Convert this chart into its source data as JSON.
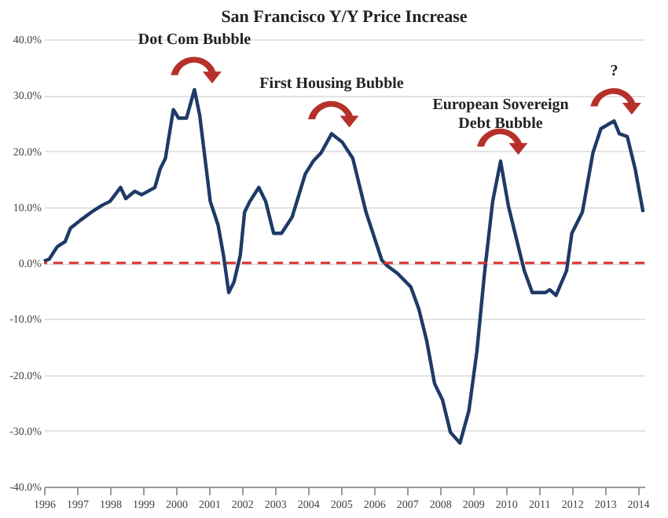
{
  "chart_data": {
    "type": "line",
    "title": "San Francisco Y/Y Price Increase",
    "x": [
      1996.0,
      1996.16,
      1996.4,
      1996.64,
      1996.8,
      1997.12,
      1997.44,
      1997.76,
      1998.0,
      1998.32,
      1998.48,
      1998.75,
      1998.96,
      1999.36,
      1999.52,
      1999.68,
      1999.92,
      2000.08,
      2000.32,
      2000.56,
      2000.72,
      2000.88,
      2001.04,
      2001.28,
      2001.44,
      2001.6,
      2001.76,
      2001.95,
      2002.08,
      2002.24,
      2002.51,
      2002.72,
      2002.96,
      2003.2,
      2003.52,
      2003.92,
      2004.16,
      2004.4,
      2004.72,
      2005.04,
      2005.36,
      2005.76,
      2006.24,
      2006.4,
      2006.72,
      2007.12,
      2007.36,
      2007.6,
      2007.84,
      2008.08,
      2008.32,
      2008.61,
      2008.88,
      2009.12,
      2009.36,
      2009.6,
      2009.84,
      2010.08,
      2010.4,
      2010.56,
      2010.8,
      2011.2,
      2011.33,
      2011.52,
      2011.84,
      2012.0,
      2012.32,
      2012.64,
      2012.88,
      2013.28,
      2013.44,
      2013.68,
      2013.92,
      2014.16
    ],
    "series": [
      {
        "color": "#1f3a68",
        "values": [
          0.3,
          0.7,
          2.9,
          3.8,
          6.2,
          7.7,
          9.1,
          10.3,
          11.0,
          13.5,
          11.5,
          12.8,
          12.2,
          13.5,
          16.8,
          18.7,
          27.4,
          25.9,
          25.9,
          31.0,
          26.4,
          18.7,
          11.0,
          6.7,
          1.4,
          -5.3,
          -3.4,
          1.4,
          9.1,
          11.0,
          13.5,
          11.0,
          5.3,
          5.3,
          8.2,
          15.9,
          18.2,
          19.7,
          23.1,
          21.6,
          18.7,
          9.1,
          0.5,
          -0.5,
          -1.9,
          -4.3,
          -8.2,
          -13.9,
          -21.6,
          -24.5,
          -30.3,
          -32.2,
          -26.4,
          -15.9,
          -1.4,
          11.0,
          18.2,
          10.1,
          2.4,
          -1.4,
          -5.3,
          -5.3,
          -4.8,
          -5.8,
          -1.4,
          5.3,
          9.1,
          19.7,
          24.0,
          25.4,
          23.1,
          22.6,
          16.8,
          9.1
        ]
      }
    ],
    "xlim": [
      1996,
      2014.2
    ],
    "xticks": [
      1996,
      1997,
      1998,
      1999,
      2000,
      2001,
      2002,
      2003,
      2004,
      2005,
      2006,
      2007,
      2008,
      2009,
      2010,
      2011,
      2012,
      2013,
      2014
    ],
    "ylim": [
      -40,
      40
    ],
    "yticks": [
      {
        "value": -40,
        "label": "-40.0%"
      },
      {
        "value": -30,
        "label": "-30.0%"
      },
      {
        "value": -20,
        "label": "-20.0%"
      },
      {
        "value": -10,
        "label": "-10.0%"
      },
      {
        "value": 0,
        "label": "0.0%"
      },
      {
        "value": 10,
        "label": "10.0%"
      },
      {
        "value": 20,
        "label": "20.0%"
      },
      {
        "value": 30,
        "label": "30.0%"
      },
      {
        "value": 40,
        "label": "40.0%"
      }
    ],
    "grid": "y",
    "marker": "none",
    "line_style": "solid",
    "ref_lines": [
      {
        "axis": "y",
        "value": 0,
        "color": "#d9302c",
        "line_style": "dashed"
      }
    ],
    "annotations": [
      {
        "text": "Dot Com Bubble",
        "x": 2000.56,
        "y": 31.0
      },
      {
        "text": "First Housing Bubble",
        "x": 2004.72,
        "y": 23.1
      },
      {
        "text": "European Sovereign\nDebt Bubble",
        "x": 2009.84,
        "y": 18.2
      },
      {
        "text": "?",
        "x": 2013.28,
        "y": 25.4
      }
    ]
  }
}
